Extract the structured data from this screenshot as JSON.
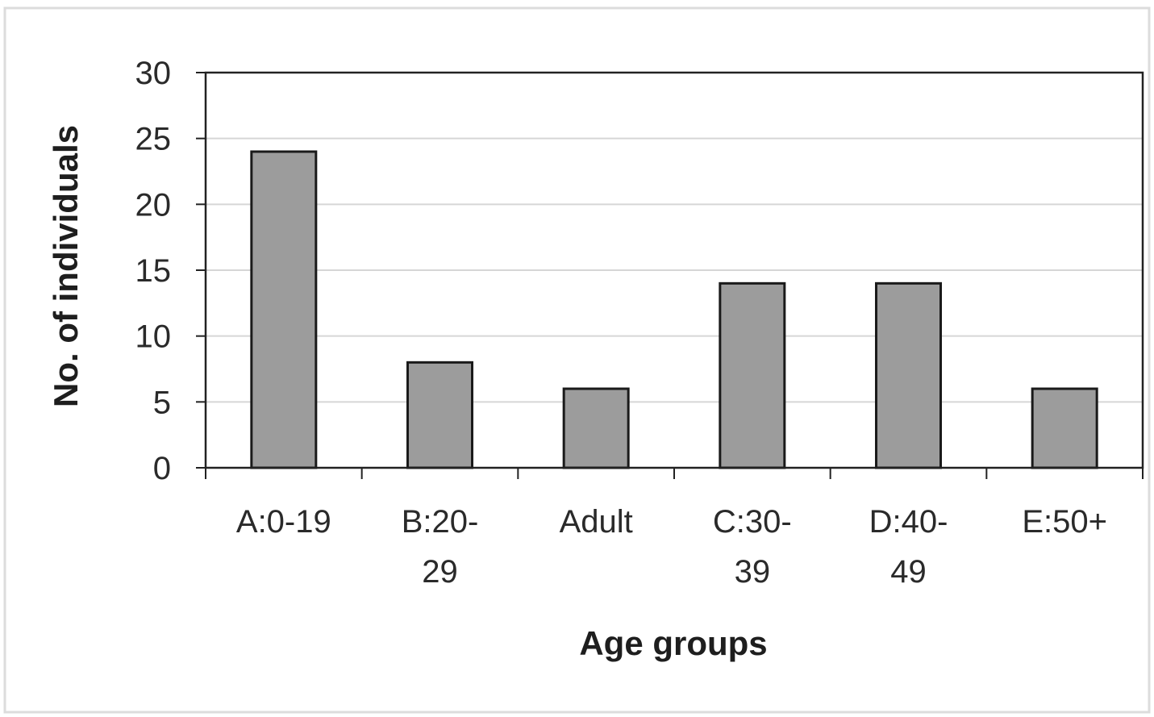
{
  "chart_data": {
    "type": "bar",
    "title": "",
    "xlabel": "Age groups",
    "ylabel": "No. of individuals",
    "categories": [
      [
        "A:0-19"
      ],
      [
        "B:20-",
        "29"
      ],
      [
        "Adult"
      ],
      [
        "C:30-",
        "39"
      ],
      [
        "D:40-",
        "49"
      ],
      [
        "E:50+"
      ]
    ],
    "values": [
      24,
      8,
      6,
      14,
      14,
      6
    ],
    "ylim": [
      0,
      30
    ],
    "yticks": [
      "0",
      "5",
      "10",
      "15",
      "20",
      "25",
      "30"
    ],
    "grid": true,
    "legend": false,
    "colors": {
      "bar_fill": "#9c9c9c",
      "bar_stroke": "#1a1a1a",
      "grid": "#d6d6d6",
      "frame": "#222222",
      "page_border": "#dcdcdc"
    }
  }
}
